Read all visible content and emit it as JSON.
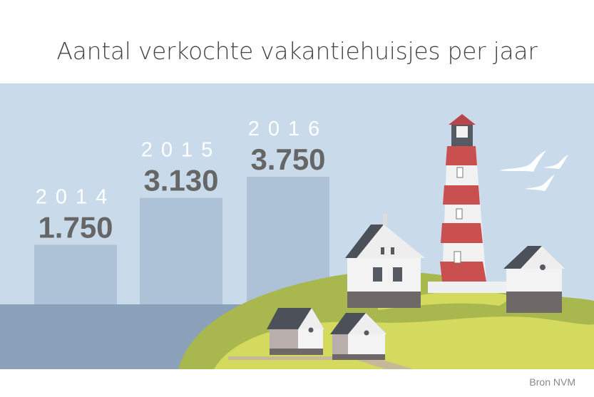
{
  "title": "Aantal verkochte vakantiehuisjes per jaar",
  "source": "Bron NVM",
  "colors": {
    "sky": "#c9dbeb",
    "water": "#8aa1b9",
    "bar": "#adc1d7",
    "value_text": "#666666",
    "year_text": "#ffffff",
    "hill": "#a8b84f",
    "hill_light": "#d3da5e",
    "lighthouse_red": "#c9504f"
  },
  "chart_data": {
    "type": "bar",
    "title": "Aantal verkochte vakantiehuisjes per jaar",
    "categories": [
      "2014",
      "2015",
      "2016"
    ],
    "values": [
      1750,
      3130,
      3750
    ],
    "value_labels": [
      "1.750",
      "3.130",
      "3.750"
    ],
    "grid": false,
    "legend": "none"
  }
}
